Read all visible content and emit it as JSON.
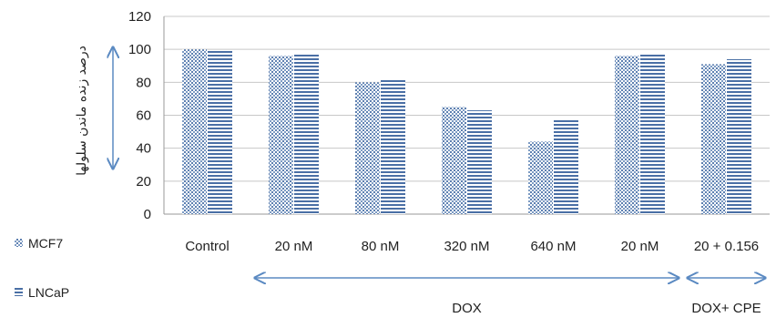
{
  "chart_data": {
    "type": "bar",
    "title": "",
    "xlabel": "",
    "ylabel": "درصد زنده ماندن سلولها",
    "ylim": [
      0,
      120
    ],
    "yticks": [
      0,
      20,
      40,
      60,
      80,
      100,
      120
    ],
    "grid": true,
    "legend": "left-bottom",
    "categories": [
      "Control",
      "20 nM",
      "80 nM",
      "320 nM",
      "640 nM",
      "20 nM",
      "20 + 0.156"
    ],
    "series": [
      {
        "name": "MCF7",
        "values": [
          100,
          96,
          80,
          65,
          44,
          96,
          91
        ],
        "color": "#7d9cc4",
        "pattern": "dots"
      },
      {
        "name": "LNCaP",
        "values": [
          99,
          97,
          82,
          63,
          57,
          97,
          94
        ],
        "color": "#4a6fa5",
        "pattern": "hlines"
      }
    ],
    "groups": [
      {
        "label": "DOX",
        "from": 1,
        "to": 5
      },
      {
        "label": "DOX+ CPE",
        "from": 6,
        "to": 6
      }
    ],
    "colors": {
      "arrow": "#5b8ac2",
      "grid": "#c8c8c8",
      "axis": "#9a9a9a"
    }
  }
}
